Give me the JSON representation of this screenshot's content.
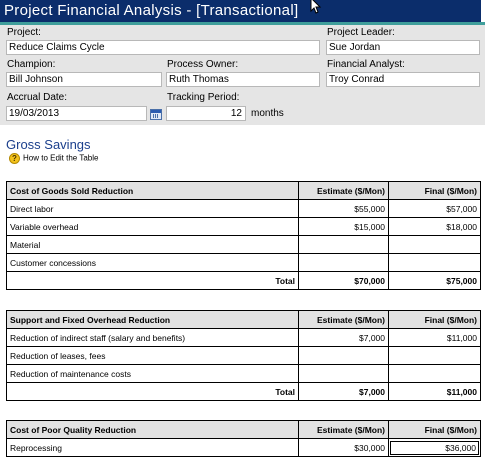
{
  "window": {
    "title": "Project Financial Analysis - [Transactional]"
  },
  "form": {
    "project_label": "Project:",
    "project_value": "Reduce Claims Cycle",
    "leader_label": "Project Leader:",
    "leader_value": "Sue Jordan",
    "champion_label": "Champion:",
    "champion_value": "Bill Johnson",
    "owner_label": "Process Owner:",
    "owner_value": "Ruth Thomas",
    "analyst_label": "Financial Analyst:",
    "analyst_value": "Troy Conrad",
    "accrual_label": "Accrual Date:",
    "accrual_value": "19/03/2013",
    "tracking_label": "Tracking Period:",
    "tracking_value": "12",
    "tracking_unit": "months"
  },
  "section": {
    "title": "Gross Savings",
    "howto_label": "How to Edit the Table"
  },
  "tables": {
    "cogs": {
      "header": "Cost of Goods Sold Reduction",
      "col_estimate": "Estimate ($/Mon)",
      "col_final": "Final ($/Mon)",
      "rows": [
        {
          "label": "Direct labor",
          "estimate": "$55,000",
          "final": "$57,000"
        },
        {
          "label": "Variable overhead",
          "estimate": "$15,000",
          "final": "$18,000"
        },
        {
          "label": "Material",
          "estimate": "",
          "final": ""
        },
        {
          "label": "Customer concessions",
          "estimate": "",
          "final": ""
        }
      ],
      "total_label": "Total",
      "total_estimate": "$70,000",
      "total_final": "$75,000"
    },
    "overhead": {
      "header": "Support and Fixed Overhead Reduction",
      "col_estimate": "Estimate ($/Mon)",
      "col_final": "Final ($/Mon)",
      "rows": [
        {
          "label": "Reduction of indirect staff (salary and benefits)",
          "estimate": "$7,000",
          "final": "$11,000"
        },
        {
          "label": "Reduction of leases, fees",
          "estimate": "",
          "final": ""
        },
        {
          "label": "Reduction of maintenance costs",
          "estimate": "",
          "final": ""
        }
      ],
      "total_label": "Total",
      "total_estimate": "$7,000",
      "total_final": "$11,000"
    },
    "copq": {
      "header": "Cost of Poor Quality Reduction",
      "col_estimate": "Estimate ($/Mon)",
      "col_final": "Final ($/Mon)",
      "rows": [
        {
          "label": "Reprocessing",
          "estimate": "$30,000",
          "final": "$36,000"
        }
      ]
    }
  },
  "icons": {
    "calendar": "calendar-icon",
    "help": "help-icon",
    "cursor": "mouse-cursor-icon"
  },
  "colors": {
    "titlebar": "#0b2d6b",
    "accent": "#3f9e9b",
    "section_title": "#1b3f8c",
    "form_bg": "#e5e5e5",
    "header_bg": "#e2e2e2"
  }
}
